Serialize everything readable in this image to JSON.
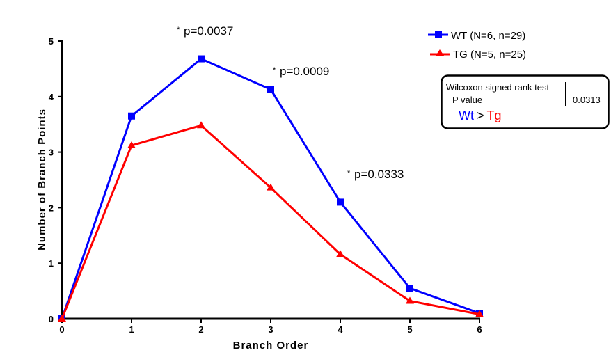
{
  "chart_data": {
    "type": "line",
    "title": "",
    "xlabel": "Branch Order",
    "ylabel": "Number of  Branch  Points",
    "xlim": [
      0,
      6
    ],
    "ylim": [
      0,
      5
    ],
    "x": [
      0,
      1,
      2,
      3,
      4,
      5,
      6
    ],
    "xticks": [
      "0",
      "1",
      "2",
      "3",
      "4",
      "5",
      "6"
    ],
    "yticks": [
      "0",
      "1",
      "2",
      "3",
      "4",
      "5"
    ],
    "grid": false,
    "legend_position": "top-right",
    "series": [
      {
        "name": "WT (N=6, n=29)",
        "color": "#0000ff",
        "marker": "square",
        "values": [
          0,
          3.65,
          4.68,
          4.13,
          2.1,
          0.55,
          0.1
        ]
      },
      {
        "name": "TG (N=5, n=25)",
        "color": "#ff0000",
        "marker": "triangle",
        "values": [
          0,
          3.12,
          3.48,
          2.36,
          1.16,
          0.32,
          0.08
        ]
      }
    ],
    "annotations": [
      {
        "star": "*",
        "text": "p=0.0037",
        "x": 2
      },
      {
        "star": "*",
        "text": "p=0.0009",
        "x": 3
      },
      {
        "star": "*",
        "text": "p=0.0333",
        "x": 4
      }
    ],
    "stats_box": {
      "test": "Wilcoxon signed rank test",
      "label": "P value",
      "value": "0.0313",
      "left": "Wt",
      "op": ">",
      "right": "Tg"
    }
  }
}
